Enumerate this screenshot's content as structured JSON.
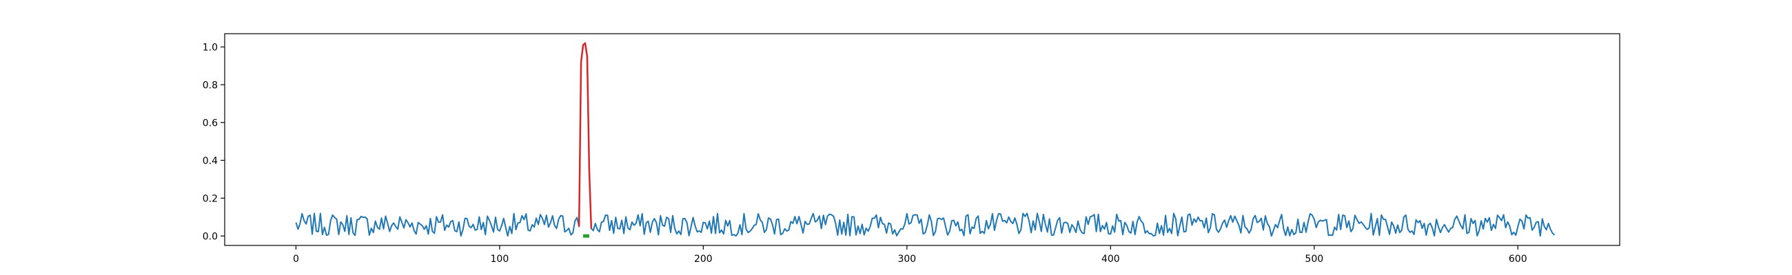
{
  "chart_data": {
    "type": "line",
    "title": "",
    "xlabel": "",
    "ylabel": "",
    "xlim": [
      -35,
      650
    ],
    "ylim": [
      -0.05,
      1.07
    ],
    "x_ticks": [
      0,
      100,
      200,
      300,
      400,
      500,
      600
    ],
    "y_ticks": [
      0.0,
      0.2,
      0.4,
      0.6,
      0.8,
      1.0
    ],
    "x_tick_labels": [
      "0",
      "100",
      "200",
      "300",
      "400",
      "500",
      "600"
    ],
    "y_tick_labels": [
      "0.0",
      "0.2",
      "0.4",
      "0.6",
      "0.8",
      "1.0"
    ],
    "grid": false,
    "legend": "none",
    "x_range": [
      0,
      618
    ],
    "signal_seed": 7,
    "noise_baseline": 0.06,
    "noise_amplitude": 0.12,
    "series": [
      {
        "color": "#1f77b4",
        "style": "line",
        "description": "noisy baseline signal, values roughly between 0.0 and 0.13 over x 0–618"
      },
      {
        "color": "#d62728",
        "style": "line",
        "x": [
          139,
          140,
          141,
          142,
          143,
          144,
          145
        ],
        "y": [
          0.05,
          0.92,
          1.01,
          1.02,
          0.95,
          0.35,
          0.04
        ]
      },
      {
        "color": "#2ca02c",
        "style": "thick-segment",
        "x": [
          141,
          144
        ],
        "y": [
          0.0,
          0.0
        ]
      }
    ]
  }
}
